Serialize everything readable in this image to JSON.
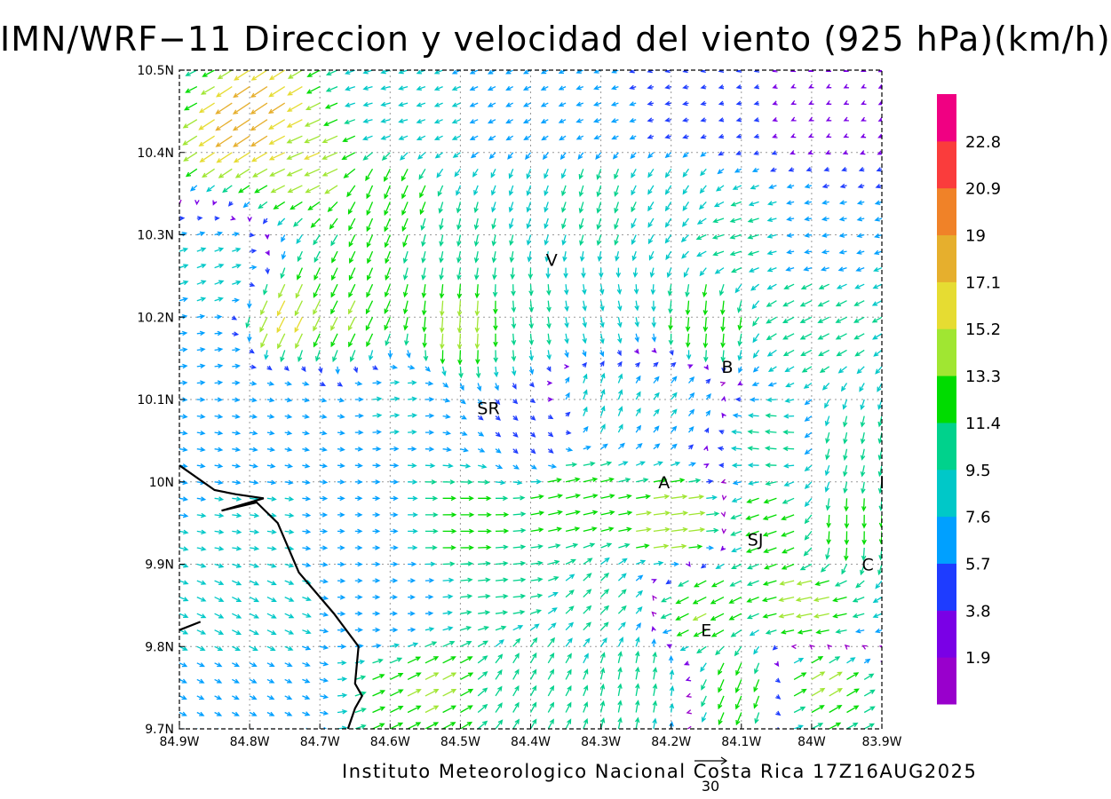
{
  "title": "IMN/WRF−11 Direccion y velocidad del viento (925 hPa)(km/h)",
  "footer": "Instituto Meteorologico Nacional Costa Rica 17Z16AUG2025",
  "reference_vector_label": "30",
  "chart_data": {
    "type": "vector-field",
    "title": "IMN/WRF−11 Direccion y velocidad del viento (925 hPa)(km/h)",
    "xlim": [
      -84.9,
      -83.9
    ],
    "ylim": [
      9.7,
      10.5
    ],
    "x_ticks": [
      "84.9W",
      "84.8W",
      "84.7W",
      "84.6W",
      "84.5W",
      "84.4W",
      "84.3W",
      "84.2W",
      "84.1W",
      "84W",
      "83.9W"
    ],
    "y_ticks": [
      "9.7N",
      "9.8N",
      "9.9N",
      "10N",
      "10.1N",
      "10.2N",
      "10.3N",
      "10.4N",
      "10.5N"
    ],
    "grid": true,
    "colorbar": {
      "labels": [
        "1.9",
        "3.8",
        "5.7",
        "7.6",
        "9.5",
        "11.4",
        "13.3",
        "15.2",
        "17.1",
        "19",
        "20.9",
        "22.8"
      ],
      "colors": [
        "#9900cc",
        "#7a00e6",
        "#1e3cff",
        "#00a0ff",
        "#00c8c8",
        "#00d28c",
        "#00dc00",
        "#a0e632",
        "#e6dc32",
        "#e6af2d",
        "#f08228",
        "#fa3c3c",
        "#f00082"
      ]
    },
    "places": [
      {
        "label": "V",
        "lon": -84.37,
        "lat": 10.27
      },
      {
        "label": "SR",
        "lon": -84.46,
        "lat": 10.09
      },
      {
        "label": "B",
        "lon": -84.12,
        "lat": 10.14
      },
      {
        "label": "A",
        "lon": -84.21,
        "lat": 10.0
      },
      {
        "label": "SJ",
        "lon": -84.08,
        "lat": 9.93
      },
      {
        "label": "C",
        "lon": -83.92,
        "lat": 9.9
      },
      {
        "label": "E",
        "lon": -84.15,
        "lat": 9.82
      },
      {
        "label": "I",
        "lon": -83.9,
        "lat": 10.0
      }
    ],
    "coastline": [
      [
        -84.9,
        10.02
      ],
      [
        -84.85,
        9.99
      ],
      [
        -84.82,
        9.985
      ],
      [
        -84.78,
        9.98
      ],
      [
        -84.84,
        9.965
      ],
      [
        -84.79,
        9.975
      ],
      [
        -84.76,
        9.95
      ],
      [
        -84.73,
        9.89
      ],
      [
        -84.68,
        9.84
      ],
      [
        -84.645,
        9.8
      ],
      [
        -84.65,
        9.755
      ],
      [
        -84.64,
        9.74
      ],
      [
        -84.65,
        9.725
      ],
      [
        -84.66,
        9.7
      ]
    ],
    "coastline2": [
      [
        -84.9,
        9.82
      ],
      [
        -84.87,
        9.83
      ]
    ],
    "wind_vectors": [
      {
        "lon": -84.9,
        "lat": 10.5,
        "u": -10,
        "v": -5
      },
      {
        "lon": -84.8,
        "lat": 10.45,
        "u": -15,
        "v": -10
      },
      {
        "lon": -84.7,
        "lat": 10.4,
        "u": -14,
        "v": -6
      },
      {
        "lon": -84.6,
        "lat": 10.45,
        "u": -8,
        "v": -2
      },
      {
        "lon": -84.5,
        "lat": 10.45,
        "u": -7,
        "v": -3
      },
      {
        "lon": -84.4,
        "lat": 10.45,
        "u": -6,
        "v": -3
      },
      {
        "lon": -84.3,
        "lat": 10.45,
        "u": -6,
        "v": -2
      },
      {
        "lon": -84.2,
        "lat": 10.45,
        "u": -5,
        "v": -1
      },
      {
        "lon": -84.1,
        "lat": 10.45,
        "u": -4,
        "v": -1
      },
      {
        "lon": -84.0,
        "lat": 10.45,
        "u": -2,
        "v": -1
      },
      {
        "lon": -84.6,
        "lat": 10.35,
        "u": -5,
        "v": -12
      },
      {
        "lon": -84.5,
        "lat": 10.3,
        "u": -2,
        "v": -10
      },
      {
        "lon": -84.4,
        "lat": 10.35,
        "u": -3,
        "v": -9
      },
      {
        "lon": -84.3,
        "lat": 10.35,
        "u": -3,
        "v": -10
      },
      {
        "lon": -84.2,
        "lat": 10.35,
        "u": -5,
        "v": -8
      },
      {
        "lon": -84.1,
        "lat": 10.3,
        "u": -10,
        "v": -3
      },
      {
        "lon": -84.0,
        "lat": 10.3,
        "u": -6,
        "v": -1
      },
      {
        "lon": -84.75,
        "lat": 10.2,
        "u": -7,
        "v": -14
      },
      {
        "lon": -84.65,
        "lat": 10.2,
        "u": -6,
        "v": -12
      },
      {
        "lon": -84.5,
        "lat": 10.2,
        "u": -1,
        "v": -14
      },
      {
        "lon": -84.4,
        "lat": 10.2,
        "u": 1,
        "v": -10
      },
      {
        "lon": -84.3,
        "lat": 10.2,
        "u": 2,
        "v": -9
      },
      {
        "lon": -84.15,
        "lat": 10.2,
        "u": -1,
        "v": -13
      },
      {
        "lon": -84.0,
        "lat": 10.2,
        "u": -10,
        "v": -5
      },
      {
        "lon": -84.85,
        "lat": 10.25,
        "u": 8,
        "v": 3
      },
      {
        "lon": -84.85,
        "lat": 10.15,
        "u": 7,
        "v": 1
      },
      {
        "lon": -84.85,
        "lat": 10.05,
        "u": 7,
        "v": -1
      },
      {
        "lon": -84.75,
        "lat": 10.1,
        "u": 6,
        "v": -1
      },
      {
        "lon": -84.6,
        "lat": 10.1,
        "u": 8,
        "v": 1
      },
      {
        "lon": -84.4,
        "lat": 10.05,
        "u": 4,
        "v": -4
      },
      {
        "lon": -84.3,
        "lat": 10.1,
        "u": 3,
        "v": 9
      },
      {
        "lon": -84.2,
        "lat": 10.1,
        "u": 5,
        "v": 6
      },
      {
        "lon": -84.05,
        "lat": 10.05,
        "u": -10,
        "v": 1
      },
      {
        "lon": -83.95,
        "lat": 10.05,
        "u": -2,
        "v": -10
      },
      {
        "lon": -84.8,
        "lat": 9.95,
        "u": 8,
        "v": -1
      },
      {
        "lon": -84.65,
        "lat": 9.95,
        "u": 6,
        "v": 0
      },
      {
        "lon": -84.5,
        "lat": 9.95,
        "u": 12,
        "v": 0
      },
      {
        "lon": -84.35,
        "lat": 9.98,
        "u": 13,
        "v": 3
      },
      {
        "lon": -84.2,
        "lat": 9.95,
        "u": 15,
        "v": 2
      },
      {
        "lon": -84.05,
        "lat": 9.95,
        "u": -12,
        "v": -4
      },
      {
        "lon": -83.95,
        "lat": 9.95,
        "u": 0,
        "v": -12
      },
      {
        "lon": -84.8,
        "lat": 9.85,
        "u": 8,
        "v": -4
      },
      {
        "lon": -84.6,
        "lat": 9.85,
        "u": 6,
        "v": 0
      },
      {
        "lon": -84.45,
        "lat": 9.88,
        "u": 11,
        "v": 1
      },
      {
        "lon": -84.3,
        "lat": 9.85,
        "u": 7,
        "v": 7
      },
      {
        "lon": -84.15,
        "lat": 9.85,
        "u": -12,
        "v": -6
      },
      {
        "lon": -84.0,
        "lat": 9.85,
        "u": -14,
        "v": -3
      },
      {
        "lon": -84.8,
        "lat": 9.75,
        "u": 6,
        "v": -3
      },
      {
        "lon": -84.55,
        "lat": 9.75,
        "u": 12,
        "v": 6
      },
      {
        "lon": -84.4,
        "lat": 9.75,
        "u": 5,
        "v": 9
      },
      {
        "lon": -84.25,
        "lat": 9.75,
        "u": 2,
        "v": 11
      },
      {
        "lon": -84.1,
        "lat": 9.75,
        "u": -5,
        "v": -12
      },
      {
        "lon": -84.0,
        "lat": 9.75,
        "u": 12,
        "v": 7
      }
    ]
  }
}
